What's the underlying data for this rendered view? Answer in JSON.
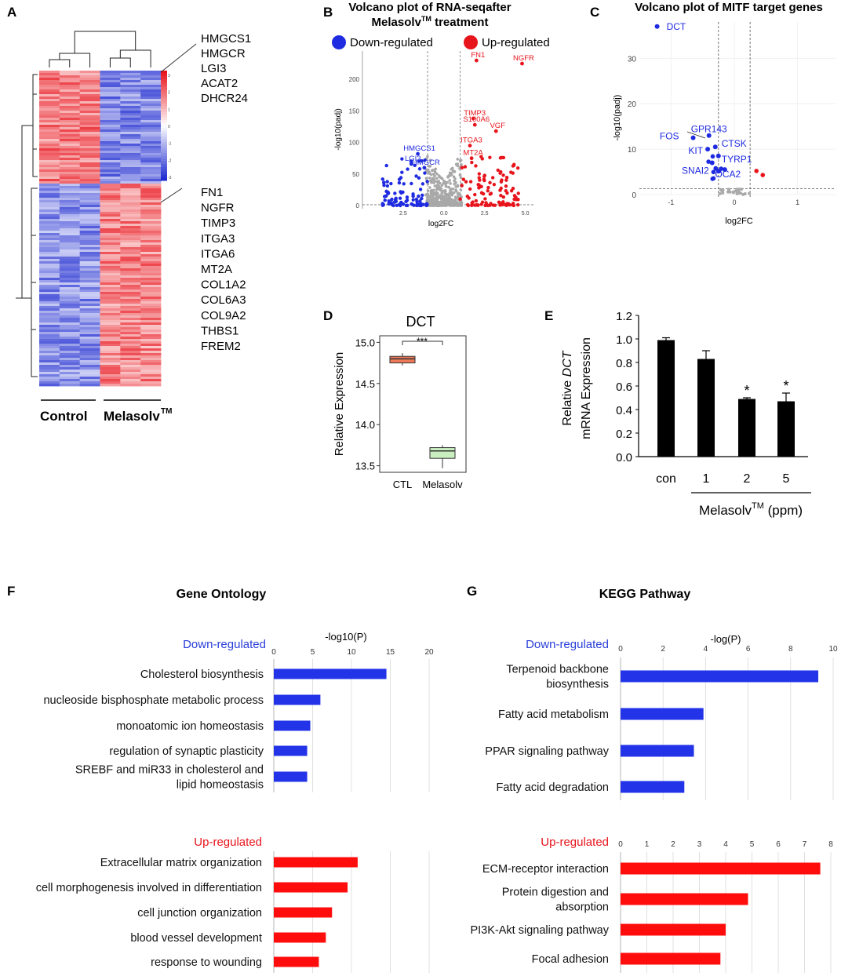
{
  "panels": {
    "a": "A",
    "b": "B",
    "c": "C",
    "d": "D",
    "e": "E",
    "f": "F",
    "g": "G"
  },
  "chart_data": [
    {
      "id": "A",
      "type": "heatmap",
      "genes_top": [
        "HMGCS1",
        "HMGCR",
        "LGI3",
        "ACAT2",
        "DHCR24"
      ],
      "genes_bottom": [
        "FN1",
        "NGFR",
        "TIMP3",
        "ITGA3",
        "ITGA6",
        "MT2A",
        "COL1A2",
        "COL6A3",
        "COL9A2",
        "THBS1",
        "FREM2"
      ],
      "groups": [
        "Control",
        "Melasolv"
      ],
      "tm": "TM",
      "color_scale": {
        "ticks": [
          "3",
          "2",
          "1",
          "0",
          "-1",
          "-2",
          "-3"
        ],
        "high": "#e8141c",
        "mid": "#ffffff",
        "low": "#1f2bd0"
      }
    },
    {
      "id": "B",
      "type": "scatter",
      "title_line1": "Volcano plot of RNA-seqafter",
      "title_line2": "Melasolv",
      "title_tm": "TM",
      "title_end": " treatment",
      "legend": [
        {
          "label": "Down-regulated",
          "color": "#1f2be0"
        },
        {
          "label": "Up-regulated",
          "color": "#e8141c"
        }
      ],
      "xlabel": "log2FC",
      "ylabel": "-log10(padj)",
      "xlim": [
        -5,
        5.5
      ],
      "ylim": [
        0,
        245
      ],
      "x_ticks": [
        "2.5",
        "0.0",
        "2.5",
        "5.0"
      ],
      "y_ticks": [
        "0",
        "50",
        "100",
        "150",
        "200"
      ],
      "thresholds_x": [
        -1,
        1
      ],
      "labeled_points": [
        {
          "label": "FN1",
          "x": 2.0,
          "y": 230,
          "color": "#e8141c"
        },
        {
          "label": "NGFR",
          "x": 4.8,
          "y": 225,
          "color": "#e8141c"
        },
        {
          "label": "TIMP3",
          "x": 1.8,
          "y": 138,
          "color": "#e8141c"
        },
        {
          "label": "S100A6",
          "x": 1.9,
          "y": 128,
          "color": "#e8141c"
        },
        {
          "label": "VGF",
          "x": 3.2,
          "y": 118,
          "color": "#e8141c"
        },
        {
          "label": "ITGA3",
          "x": 1.6,
          "y": 95,
          "color": "#e8141c"
        },
        {
          "label": "MT2A",
          "x": 1.7,
          "y": 75,
          "color": "#e8141c"
        },
        {
          "label": "HMGCS1",
          "x": -1.6,
          "y": 82,
          "color": "#1f2be0"
        },
        {
          "label": "LGI3",
          "x": -2.0,
          "y": 66,
          "color": "#1f2be0"
        },
        {
          "label": "HMGCR",
          "x": -1.2,
          "y": 60,
          "color": "#1f2be0"
        }
      ]
    },
    {
      "id": "C",
      "type": "scatter",
      "title": "Volcano plot of MITF target genes",
      "xlabel": "log2FC",
      "ylabel": "-log10(padj)",
      "xlim": [
        -1.5,
        1.6
      ],
      "ylim": [
        0,
        38
      ],
      "x_ticks": [
        "-1",
        "0",
        "1"
      ],
      "y_ticks": [
        "0",
        "10",
        "20",
        "30"
      ],
      "thresholds_x": [
        -0.25,
        0.25
      ],
      "threshold_y": 1.3,
      "labeled_points": [
        {
          "label": "DCT",
          "x": -1.22,
          "y": 37,
          "color": "#1f2be0"
        },
        {
          "label": "GPR143",
          "x": -0.4,
          "y": 13,
          "color": "#1f2be0"
        },
        {
          "label": "FOS",
          "x": -0.65,
          "y": 12.5,
          "color": "#1f2be0"
        },
        {
          "label": "CTSK",
          "x": -0.3,
          "y": 10.5,
          "color": "#1f2be0"
        },
        {
          "label": "KIT",
          "x": -0.42,
          "y": 10,
          "color": "#1f2be0"
        },
        {
          "label": "TYRP1",
          "x": -0.25,
          "y": 8.5,
          "color": "#1f2be0"
        },
        {
          "label": "SNAI2",
          "x": -0.35,
          "y": 7,
          "color": "#1f2be0"
        },
        {
          "label": "OCA2",
          "x": -0.15,
          "y": 5.5,
          "color": "#1f2be0"
        }
      ],
      "up_points": [
        {
          "x": 0.35,
          "y": 5.2
        },
        {
          "x": 0.45,
          "y": 4.3
        }
      ]
    },
    {
      "id": "D",
      "type": "box",
      "title": "DCT",
      "ylabel": "Relative Expression",
      "categories": [
        "CTL",
        "Melasolv"
      ],
      "boxes": [
        {
          "min": 14.72,
          "q1": 14.75,
          "median": 14.8,
          "q3": 14.83,
          "max": 14.87,
          "color": "#ef7a5a"
        },
        {
          "min": 13.47,
          "q1": 13.59,
          "median": 13.68,
          "q3": 13.72,
          "max": 13.75,
          "color": "#c9eec0"
        }
      ],
      "ylim": [
        13.42,
        15.08
      ],
      "y_ticks": [
        "13.5",
        "14.0",
        "14.5",
        "15.0"
      ],
      "significance": "***"
    },
    {
      "id": "E",
      "type": "bar",
      "ylabel_pre": "Relative ",
      "ylabel_italic": "DCT",
      "ylabel_line2": "mRNA  Expression",
      "categories": [
        "con",
        "1",
        "2",
        "5"
      ],
      "values": [
        0.99,
        0.83,
        0.49,
        0.47
      ],
      "errors": [
        0.02,
        0.07,
        0.01,
        0.07
      ],
      "significance": [
        "",
        "",
        "*",
        "*"
      ],
      "ylim": [
        0,
        1.2
      ],
      "y_ticks": [
        "0.0",
        "0.2",
        "0.4",
        "0.6",
        "0.8",
        "1.0",
        "1.2"
      ],
      "group_label": "Melasolv",
      "group_tm": "TM",
      "group_unit": " (ppm)"
    },
    {
      "id": "F",
      "type": "bar",
      "title": "Gene Ontology",
      "axis_label": "-log10(P)",
      "down": {
        "label": "Down-regulated",
        "xlim": [
          0,
          20
        ],
        "x_ticks": [
          "0",
          "5",
          "10",
          "15",
          "20"
        ],
        "categories": [
          [
            "Cholesterol biosynthesis"
          ],
          [
            "nucleoside bisphosphate metabolic process"
          ],
          [
            "monoatomic ion homeostasis"
          ],
          [
            "regulation of synaptic plasticity"
          ],
          [
            "SREBF  and miR33 in cholesterol and",
            "lipid homeostasis"
          ]
        ],
        "values": [
          14.5,
          6.0,
          4.7,
          4.3,
          4.3
        ]
      },
      "up": {
        "label": "Up-regulated",
        "xlim": [
          0,
          20
        ],
        "categories": [
          [
            "Extracellular matrix organization"
          ],
          [
            "cell morphogenesis involved in differentiation"
          ],
          [
            "cell junction organization"
          ],
          [
            "blood vessel development"
          ],
          [
            "response to wounding"
          ]
        ],
        "values": [
          10.8,
          9.5,
          7.5,
          6.7,
          5.8
        ]
      }
    },
    {
      "id": "G",
      "type": "bar",
      "title": "KEGG  Pathway",
      "axis_label": "-log(P)",
      "down": {
        "label": "Down-regulated",
        "xlim": [
          0,
          10
        ],
        "x_ticks": [
          "0",
          "2",
          "4",
          "6",
          "8",
          "10"
        ],
        "categories": [
          [
            "Terpenoid backbone",
            "biosynthesis"
          ],
          [
            "Fatty acid metabolism"
          ],
          [
            "PPAR signaling pathway"
          ],
          [
            "Fatty acid degradation"
          ]
        ],
        "values": [
          9.3,
          3.9,
          3.45,
          3.0
        ]
      },
      "up": {
        "label": "Up-regulated",
        "xlim": [
          0,
          8
        ],
        "x_ticks": [
          "0",
          "1",
          "2",
          "3",
          "4",
          "5",
          "6",
          "7",
          "8"
        ],
        "categories": [
          [
            "ECM-receptor interaction"
          ],
          [
            "Protein digestion and",
            "absorption"
          ],
          [
            "PI3K-Akt signaling pathway"
          ],
          [
            "Focal adhesion"
          ]
        ],
        "values": [
          7.6,
          4.85,
          4.0,
          3.8
        ]
      }
    }
  ]
}
